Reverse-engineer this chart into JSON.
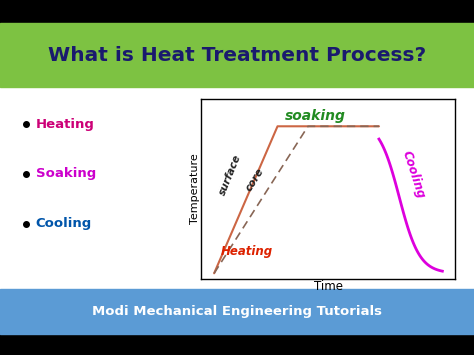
{
  "title": "What is Heat Treatment Process?",
  "title_bg": "#7dc242",
  "title_color": "#1a1a6e",
  "footer_text": "Modi Mechanical Engineering Tutorials",
  "footer_bg": "#5b9bd5",
  "footer_color": "#ffffff",
  "bg_color": "#ffffff",
  "bullet_items": [
    "Heating",
    "Soaking",
    "Cooling"
  ],
  "bullet_colors": [
    "#cc0077",
    "#cc00cc",
    "#0055aa"
  ],
  "graph_xlabel": "Time",
  "graph_ylabel": "Temperature",
  "soaking_label": "soaking",
  "soaking_color": "#228B22",
  "heating_label": "Heating",
  "heating_color": "#dd2200",
  "surface_label": "surface",
  "core_label": "core",
  "core_surface_color": "#222222",
  "cooling_label": "Cooling",
  "cooling_color": "#dd00dd",
  "surface_line_color": "#cc6644",
  "core_line_color": "#886655"
}
